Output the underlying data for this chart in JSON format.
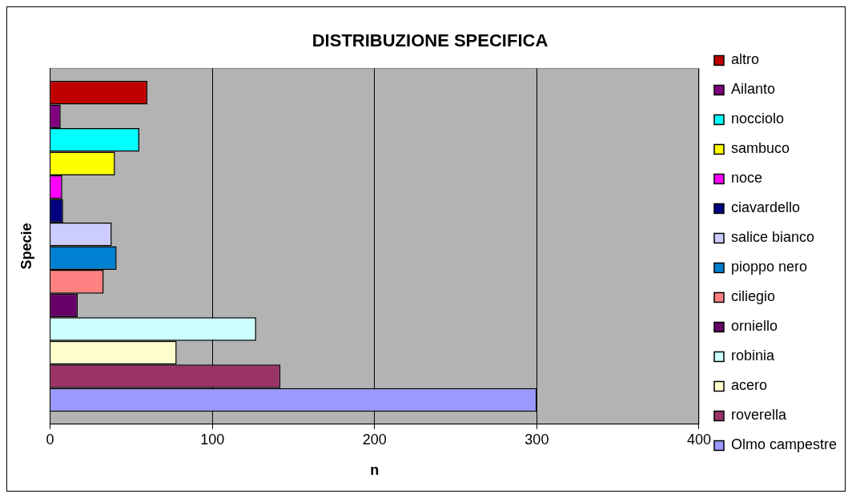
{
  "chart_data": {
    "type": "bar",
    "orientation": "horizontal",
    "title": "DISTRIBUZIONE SPECIFICA",
    "xlabel": "n",
    "ylabel": "Specie",
    "categories": [
      null
    ],
    "series": [
      {
        "name": "altro",
        "color": "#c00000",
        "values": [
          60
        ]
      },
      {
        "name": "Ailanto",
        "color": "#800080",
        "values": [
          6.5
        ]
      },
      {
        "name": "nocciolo",
        "color": "#00ffff",
        "values": [
          55
        ]
      },
      {
        "name": "sambuco",
        "color": "#ffff00",
        "values": [
          40
        ]
      },
      {
        "name": "noce",
        "color": "#ff00ff",
        "values": [
          7.5
        ]
      },
      {
        "name": "ciavardello",
        "color": "#000080",
        "values": [
          8
        ]
      },
      {
        "name": "salice bianco",
        "color": "#ccccff",
        "values": [
          38
        ]
      },
      {
        "name": "pioppo nero",
        "color": "#0080d0",
        "values": [
          41
        ]
      },
      {
        "name": "ciliegio",
        "color": "#ff8080",
        "values": [
          33
        ]
      },
      {
        "name": "orniello",
        "color": "#660066",
        "values": [
          17
        ]
      },
      {
        "name": "robinia",
        "color": "#ccffff",
        "values": [
          127
        ]
      },
      {
        "name": "acero",
        "color": "#ffffcc",
        "values": [
          78
        ]
      },
      {
        "name": "roverella",
        "color": "#993366",
        "values": [
          142
        ]
      },
      {
        "name": "Olmo campestre",
        "color": "#9999ff",
        "values": [
          300
        ]
      }
    ],
    "xlim": [
      0,
      400
    ],
    "xticks": [
      0,
      100,
      200,
      300,
      400
    ],
    "grid": "x",
    "legend": "right"
  }
}
